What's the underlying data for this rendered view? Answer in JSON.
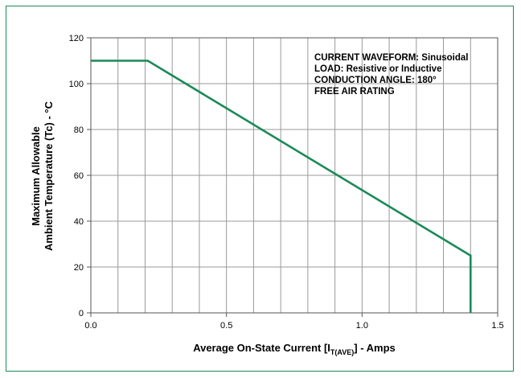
{
  "chart_data": {
    "type": "line",
    "xlabel_main": "Average On-State Current [I",
    "xlabel_sub": "T(AVE)",
    "xlabel_tail": "] - Amps",
    "ylabel_line1": "Maximum Allowable",
    "ylabel_line2": "Ambient Temperature (Tc) - °C",
    "xlim": [
      0,
      1.5
    ],
    "ylim": [
      0,
      120
    ],
    "x_ticks": [
      0.0,
      0.5,
      1.0,
      1.5
    ],
    "x_tick_labels": [
      "0.0",
      "0.5",
      "1.0",
      "1.5"
    ],
    "y_ticks": [
      0,
      20,
      40,
      60,
      80,
      100,
      120
    ],
    "y_tick_labels": [
      "0",
      "20",
      "40",
      "60",
      "80",
      "100",
      "120"
    ],
    "x_grid_step": 0.1,
    "grid": true,
    "series": [
      {
        "x": [
          0.0,
          0.21,
          1.4,
          1.4
        ],
        "y": [
          110,
          110,
          25,
          0
        ],
        "color": "#1a8a57"
      }
    ],
    "annotations": [
      "CURRENT WAVEFORM: Sinusoidal",
      "LOAD: Resistive or Inductive",
      "CONDUCTION ANGLE: 180°",
      "FREE AIR RATING"
    ],
    "annotation_placement": "top-right"
  }
}
